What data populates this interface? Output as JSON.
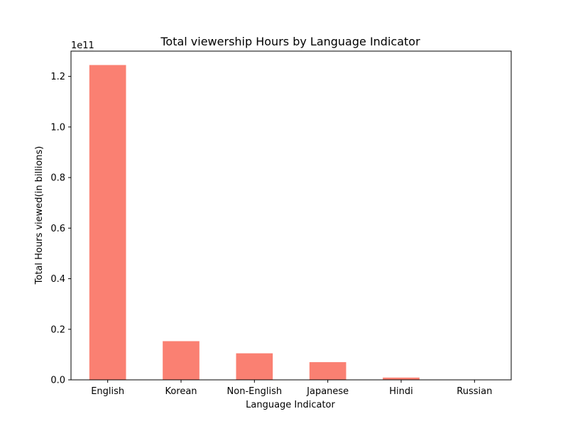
{
  "chart_data": {
    "type": "bar",
    "title": "Total viewership Hours by Language Indicator",
    "xlabel": "Language Indicator",
    "ylabel": "Total Hours viewed(in billions)",
    "y_offset_text": "1e11",
    "categories": [
      "English",
      "Korean",
      "Non-English",
      "Japanese",
      "Hindi",
      "Russian"
    ],
    "values": [
      124500000000,
      15300000000,
      10500000000,
      7000000000,
      900000000,
      100000000
    ],
    "ylim": [
      0,
      130000000000
    ],
    "yticks": [
      0,
      20000000000,
      40000000000,
      60000000000,
      80000000000,
      100000000000,
      120000000000
    ],
    "ytick_labels": [
      "0.0",
      "0.2",
      "0.4",
      "0.6",
      "0.8",
      "1.0",
      "1.2"
    ],
    "bar_color": "#fa8072",
    "grid": false,
    "legend": "none"
  }
}
